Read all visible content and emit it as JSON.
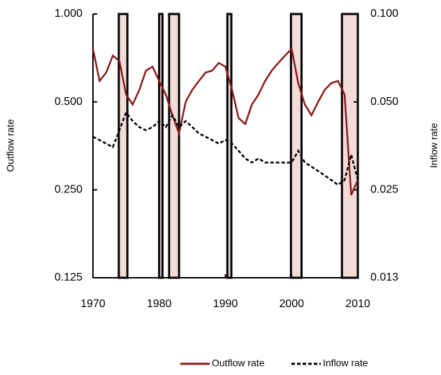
{
  "chart_data": {
    "type": "line",
    "y_label": "Outflow rate",
    "y2_label": "Inflow rate",
    "x": [
      1970,
      1971,
      1972,
      1973,
      1974,
      1975,
      1976,
      1977,
      1978,
      1979,
      1980,
      1981,
      1982,
      1983,
      1984,
      1985,
      1986,
      1987,
      1988,
      1989,
      1990,
      1991,
      1992,
      1993,
      1994,
      1995,
      1996,
      1997,
      1998,
      1999,
      2000,
      2001,
      2002,
      2003,
      2004,
      2005,
      2006,
      2007,
      2008,
      2009,
      2010
    ],
    "series": [
      {
        "name": "Outflow rate",
        "color": "#8b1a1a",
        "dash": false,
        "values": [
          0.76,
          0.59,
          0.63,
          0.72,
          0.69,
          0.53,
          0.49,
          0.55,
          0.64,
          0.66,
          0.59,
          0.53,
          0.45,
          0.39,
          0.5,
          0.55,
          0.59,
          0.63,
          0.64,
          0.68,
          0.66,
          0.55,
          0.44,
          0.42,
          0.49,
          0.53,
          0.59,
          0.64,
          0.68,
          0.72,
          0.76,
          0.58,
          0.49,
          0.45,
          0.5,
          0.55,
          0.58,
          0.59,
          0.53,
          0.24,
          0.27
        ]
      },
      {
        "name": "Inflow rate",
        "color": "#000000",
        "dash": true,
        "axis": "y2",
        "values": [
          0.038,
          0.037,
          0.036,
          0.035,
          0.04,
          0.046,
          0.043,
          0.041,
          0.04,
          0.041,
          0.043,
          0.041,
          0.045,
          0.041,
          0.043,
          0.041,
          0.039,
          0.038,
          0.037,
          0.036,
          0.037,
          0.036,
          0.034,
          0.032,
          0.031,
          0.032,
          0.031,
          0.031,
          0.031,
          0.031,
          0.031,
          0.034,
          0.031,
          0.03,
          0.029,
          0.028,
          0.027,
          0.026,
          0.027,
          0.033,
          0.027
        ]
      }
    ],
    "recessions": [
      [
        1973.9,
        1975.2
      ],
      [
        1980.0,
        1980.5
      ],
      [
        1981.5,
        1983.0
      ],
      [
        1990.3,
        1990.9
      ],
      [
        1999.9,
        2001.5
      ],
      [
        2007.6,
        2010
      ]
    ],
    "recession_color": "#f2dcd8",
    "xlim": [
      1970,
      2010
    ],
    "xticks": [
      1970,
      1980,
      1990,
      2000,
      2010
    ],
    "log_scale": true,
    "ylim": [
      0.125,
      1
    ],
    "yticks": [
      0.125,
      {
        "value": 0.25,
        "label": "0.250"
      },
      {
        "value": 0.5,
        "label": "0.500"
      },
      {
        "value": 1,
        "label": "1.000"
      }
    ],
    "y2lim": [
      0.0125,
      0.1
    ],
    "y2ticks": [
      {
        "value": 0.0125,
        "label": "0.013"
      },
      0.025,
      {
        "value": 0.05,
        "label": "0.050"
      },
      {
        "value": 0.1,
        "label": "0.100"
      }
    ]
  }
}
